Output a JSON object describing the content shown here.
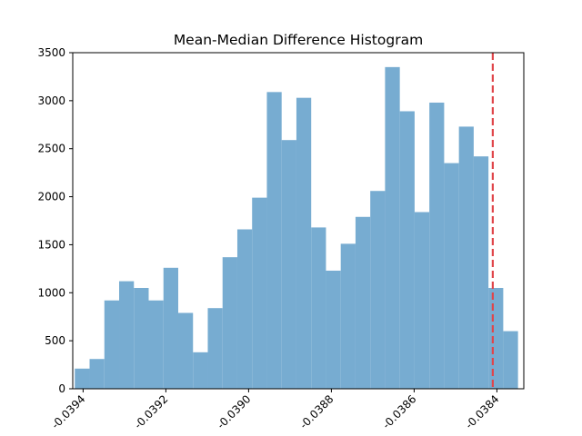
{
  "chart_data": {
    "type": "bar",
    "title": "Mean-Median Difference Histogram",
    "xlabel": "",
    "ylabel": "",
    "xlim": [
      -0.039425,
      -0.038335
    ],
    "ylim": [
      0,
      3500
    ],
    "x_ticks": [
      -0.0394,
      -0.0392,
      -0.039,
      -0.0388,
      -0.0386,
      -0.0384
    ],
    "x_tick_labels": [
      "-0.0394",
      "-0.0392",
      "-0.0390",
      "-0.0388",
      "-0.0386",
      "-0.0384"
    ],
    "y_ticks": [
      0,
      500,
      1000,
      1500,
      2000,
      2500,
      3000,
      3500
    ],
    "y_tick_labels": [
      "0",
      "500",
      "1000",
      "1500",
      "2000",
      "2500",
      "3000",
      "3500"
    ],
    "bin_start": -0.03942,
    "bin_width": 3.57e-05,
    "bar_values": [
      210,
      310,
      920,
      1120,
      1050,
      920,
      1260,
      790,
      380,
      840,
      1370,
      1660,
      1990,
      3090,
      2590,
      3030,
      1680,
      1230,
      1510,
      1790,
      2060,
      3350,
      2890,
      1840,
      2980,
      2350,
      2730,
      2420,
      1050,
      600
    ],
    "bar_color": "#77acd1",
    "reference_line": {
      "x": -0.03841,
      "color": "#e0454a",
      "style": "dashed"
    },
    "grid": false,
    "legend": false
  }
}
